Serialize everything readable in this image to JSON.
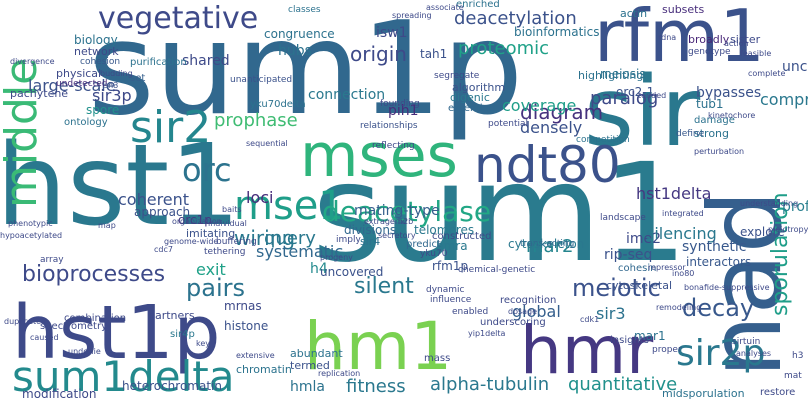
{
  "words": [
    {
      "text": "sum1p",
      "color": "#31688e"
    },
    {
      "text": "sum1",
      "color": "#2a7b8e"
    },
    {
      "text": "hst1",
      "color": "#2a788e"
    },
    {
      "text": "sir",
      "color": "#2a788e"
    },
    {
      "text": "nad",
      "color": "#355f8d"
    },
    {
      "text": "rfm1",
      "color": "#3b528b"
    },
    {
      "text": "hst1p",
      "color": "#3e4a89"
    },
    {
      "text": "hmr",
      "color": "#453882"
    },
    {
      "text": "hm1",
      "color": "#7ad151"
    },
    {
      "text": "mses",
      "color": "#2fb47c"
    },
    {
      "text": "sum1delta",
      "color": "#238a8d"
    },
    {
      "text": "ndt80",
      "color": "#3b528b"
    },
    {
      "text": "mse1",
      "color": "#1f9e89"
    },
    {
      "text": "middle",
      "color": "#3aba76"
    },
    {
      "text": "sir2",
      "color": "#24868e"
    },
    {
      "text": "vegetative",
      "color": "#3e4a89"
    },
    {
      "text": "deacetylase",
      "color": "#22a785"
    },
    {
      "text": "sir2p",
      "color": "#2a788e"
    },
    {
      "text": "orc",
      "color": "#2c738e"
    },
    {
      "text": "sporulation",
      "color": "#1f9e89"
    },
    {
      "text": "bioprocesses",
      "color": "#3e4a89"
    },
    {
      "text": "deacetylation",
      "color": "#3b528b"
    },
    {
      "text": "diagram",
      "color": "#46327e"
    },
    {
      "text": "paralog",
      "color": "#3e4a89"
    },
    {
      "text": "meiotic",
      "color": "#3b528b"
    },
    {
      "text": "silent",
      "color": "#2a788e"
    },
    {
      "text": "loci",
      "color": "#472d7b"
    },
    {
      "text": "hst1delta",
      "color": "#453882"
    },
    {
      "text": "pairs",
      "color": "#2c738e"
    },
    {
      "text": "decay",
      "color": "#38588c"
    },
    {
      "text": "quantitative",
      "color": "#21918c"
    },
    {
      "text": "fitness",
      "color": "#2a788e"
    },
    {
      "text": "alpha-tubulin",
      "color": "#2a788e"
    },
    {
      "text": "origin",
      "color": "#3e4a89"
    },
    {
      "text": "sir3",
      "color": "#2c728e"
    },
    {
      "text": "ime2",
      "color": "#3e4a89"
    },
    {
      "text": "query",
      "color": "#2a788e"
    },
    {
      "text": "wiring",
      "color": "#2a788e"
    },
    {
      "text": "coverage",
      "color": "#1f9e89"
    },
    {
      "text": "proteomic",
      "color": "#1fa188"
    },
    {
      "text": "comprehensive",
      "color": "#2a788e"
    },
    {
      "text": "silencing",
      "color": "#2a788e"
    },
    {
      "text": "mar2",
      "color": "#25858e"
    },
    {
      "text": "global",
      "color": "#355f8d"
    },
    {
      "text": "prophase",
      "color": "#3fbc73"
    },
    {
      "text": "large-scale",
      "color": "#3b528b"
    },
    {
      "text": "sir3p",
      "color": "#3e4a89"
    },
    {
      "text": "profiles",
      "color": "#277f8e"
    },
    {
      "text": "coherent",
      "color": "#3b528b"
    },
    {
      "text": "systematic",
      "color": "#31688e"
    },
    {
      "text": "mating-type",
      "color": "#355f8d"
    },
    {
      "text": "densely",
      "color": "#3b528b"
    },
    {
      "text": "hubs",
      "color": "#2c728e"
    },
    {
      "text": "isw1",
      "color": "#3e4a89"
    },
    {
      "text": "pih1",
      "color": "#472d7b"
    },
    {
      "text": "h4",
      "color": "#238a8d"
    },
    {
      "text": "exit",
      "color": "#1fa188"
    },
    {
      "text": "connection",
      "color": "#2a788e"
    },
    {
      "text": "uncharacterized",
      "color": "#3b528b"
    },
    {
      "text": "rip-seq",
      "color": "#3b528b"
    },
    {
      "text": "cytoskeleton",
      "color": "#2a788e"
    },
    {
      "text": "heterochromatin",
      "color": "#3b528b"
    },
    {
      "text": "hmla",
      "color": "#2c738e"
    },
    {
      "text": "shared",
      "color": "#3e4a89"
    },
    {
      "text": "congruence",
      "color": "#2c728e"
    },
    {
      "text": "bioinformatics",
      "color": "#2c728e"
    },
    {
      "text": "tah1",
      "color": "#3b528b"
    },
    {
      "text": "orc2-1",
      "color": "#3b528b"
    },
    {
      "text": "meiosis",
      "color": "#2c738e"
    },
    {
      "text": "bypasses",
      "color": "#3b528b"
    },
    {
      "text": "biology",
      "color": "#2c728e"
    },
    {
      "text": "network",
      "color": "#3e4a89"
    },
    {
      "text": "cohesion",
      "color": "#38588c"
    },
    {
      "text": "physical",
      "color": "#3e4a89"
    },
    {
      "text": "undetected",
      "color": "#472d7b"
    },
    {
      "text": "pachytene",
      "color": "#3e4a89"
    },
    {
      "text": "spore",
      "color": "#21918c"
    },
    {
      "text": "ontology",
      "color": "#2c728e"
    },
    {
      "text": "approach",
      "color": "#3b528b"
    },
    {
      "text": "orc1p",
      "color": "#453882"
    },
    {
      "text": "imitating",
      "color": "#3b528b"
    },
    {
      "text": "telomeres",
      "color": "#2a788e"
    },
    {
      "text": "divisions",
      "color": "#31688e"
    },
    {
      "text": "synthetic",
      "color": "#38588c"
    },
    {
      "text": "explore",
      "color": "#3b528b"
    },
    {
      "text": "interactors",
      "color": "#38588c"
    },
    {
      "text": "cytoskeletal",
      "color": "#3b528b"
    },
    {
      "text": "uncovered",
      "color": "#3b528b"
    },
    {
      "text": "rfm1p",
      "color": "#3b528b"
    },
    {
      "text": "hmra",
      "color": "#2a788e"
    },
    {
      "text": "sir4",
      "color": "#2c728e"
    },
    {
      "text": "histone",
      "color": "#3b528b"
    },
    {
      "text": "partners",
      "color": "#3e4a89"
    },
    {
      "text": "sir4p",
      "color": "#2a788e"
    },
    {
      "text": "mrnas",
      "color": "#3e4a89"
    },
    {
      "text": "combination",
      "color": "#3e4a89"
    },
    {
      "text": "chromatin",
      "color": "#2c738e"
    },
    {
      "text": "termed",
      "color": "#3b528b"
    },
    {
      "text": "abundant",
      "color": "#2c728e"
    },
    {
      "text": "enriched",
      "color": "#2c728e"
    },
    {
      "text": "subsets",
      "color": "#472d7b"
    },
    {
      "text": "actin",
      "color": "#2c728e"
    },
    {
      "text": "genotype",
      "color": "#3e4a89"
    },
    {
      "text": "broadly",
      "color": "#482677"
    },
    {
      "text": "sister",
      "color": "#3e4a89"
    },
    {
      "text": "tub1",
      "color": "#2c728e"
    },
    {
      "text": "strong",
      "color": "#2c728e"
    },
    {
      "text": "define",
      "color": "#38588c"
    },
    {
      "text": "damage",
      "color": "#2c728e"
    },
    {
      "text": "highlighting",
      "color": "#2c728e"
    },
    {
      "text": "algorithm",
      "color": "#3b528b"
    },
    {
      "text": "digenic",
      "color": "#2a788e"
    },
    {
      "text": "extended",
      "color": "#31688e"
    },
    {
      "text": "purification",
      "color": "#2c728e"
    },
    {
      "text": "set",
      "color": "#355f8d"
    },
    {
      "text": "unanticipated",
      "color": "#3b528b"
    },
    {
      "text": "yku70delta",
      "color": "#2c728e"
    },
    {
      "text": "relationships",
      "color": "#3b528b"
    },
    {
      "text": "segregate",
      "color": "#3e4a89"
    },
    {
      "text": "founding",
      "color": "#3e4a89"
    },
    {
      "text": "classes",
      "color": "#2c728e"
    },
    {
      "text": "spreading",
      "color": "#3e4a89"
    },
    {
      "text": "associate",
      "color": "#3e4a89"
    },
    {
      "text": "divergence",
      "color": "#3e4a89"
    },
    {
      "text": "budding",
      "color": "#3e4a89"
    },
    {
      "text": "sh3",
      "color": "#3b528b"
    },
    {
      "text": "sequential",
      "color": "#3e4a89"
    },
    {
      "text": "reflecting",
      "color": "#3e4a89"
    },
    {
      "text": "potential",
      "color": "#3e4a89"
    },
    {
      "text": "competition",
      "color": "#2c728e"
    },
    {
      "text": "perturbation",
      "color": "#3e4a89"
    },
    {
      "text": "kinetochore",
      "color": "#3e4a89"
    },
    {
      "text": "feasible",
      "color": "#3e4a89"
    },
    {
      "text": "complete",
      "color": "#3e4a89"
    },
    {
      "text": "action",
      "color": "#3e4a89"
    },
    {
      "text": "rdna",
      "color": "#3e4a89"
    },
    {
      "text": "tended",
      "color": "#3e4a89"
    },
    {
      "text": "predict",
      "color": "#31688e"
    },
    {
      "text": "yku70",
      "color": "#3e4a89"
    },
    {
      "text": "constructed",
      "color": "#3e4a89"
    },
    {
      "text": "trans-acting",
      "color": "#31688e"
    },
    {
      "text": "cohesin",
      "color": "#31688e"
    },
    {
      "text": "landscape",
      "color": "#3e4a89"
    },
    {
      "text": "integrated",
      "color": "#3e4a89"
    },
    {
      "text": "understanding",
      "color": "#3e4a89"
    },
    {
      "text": "pleiotropy",
      "color": "#3e4a89"
    },
    {
      "text": "genome-wide",
      "color": "#3e4a89"
    },
    {
      "text": "buffering",
      "color": "#3e4a89"
    },
    {
      "text": "tethering",
      "color": "#3e4a89"
    },
    {
      "text": "baits",
      "color": "#3e4a89"
    },
    {
      "text": "progeny",
      "color": "#3e4a89"
    },
    {
      "text": "imply",
      "color": "#3e4a89"
    },
    {
      "text": "array",
      "color": "#3e4a89"
    },
    {
      "text": "map",
      "color": "#3e4a89"
    },
    {
      "text": "cdc7",
      "color": "#3e4a89"
    },
    {
      "text": "organization",
      "color": "#3e4a89"
    },
    {
      "text": "individual",
      "color": "#3e4a89"
    },
    {
      "text": "extragenic",
      "color": "#3e4a89"
    },
    {
      "text": "secretory",
      "color": "#3e4a89"
    },
    {
      "text": "h2b",
      "color": "#3e4a89"
    },
    {
      "text": "repressor",
      "color": "#3e4a89"
    },
    {
      "text": "ino80",
      "color": "#3e4a89"
    },
    {
      "text": "bonafide-suppressive",
      "color": "#3e4a89"
    },
    {
      "text": "chemical-genetic",
      "color": "#3e4a89"
    },
    {
      "text": "remodeling",
      "color": "#3e4a89"
    },
    {
      "text": "dynamic",
      "color": "#3e4a89"
    },
    {
      "text": "influence",
      "color": "#3e4a89"
    },
    {
      "text": "enabled",
      "color": "#3e4a89"
    },
    {
      "text": "underscoring",
      "color": "#3e4a89"
    },
    {
      "text": "recognition",
      "color": "#3e4a89"
    },
    {
      "text": "dosage",
      "color": "#3e4a89"
    },
    {
      "text": "cdk1",
      "color": "#3e4a89"
    },
    {
      "text": "mar1",
      "color": "#2c728e"
    },
    {
      "text": "insights",
      "color": "#3e4a89"
    },
    {
      "text": "proper",
      "color": "#3e4a89"
    },
    {
      "text": "sirtuin",
      "color": "#3e4a89"
    },
    {
      "text": "analyses",
      "color": "#3e4a89"
    },
    {
      "text": "h3",
      "color": "#3e4a89"
    },
    {
      "text": "mat",
      "color": "#3e4a89"
    },
    {
      "text": "restore",
      "color": "#3e4a89"
    },
    {
      "text": "midsporulation",
      "color": "#2c728e"
    },
    {
      "text": "mass",
      "color": "#3e4a89"
    },
    {
      "text": "replication",
      "color": "#3e4a89"
    },
    {
      "text": "extensive",
      "color": "#3e4a89"
    },
    {
      "text": "key",
      "color": "#3e4a89"
    },
    {
      "text": "spectrometry",
      "color": "#3e4a89"
    },
    {
      "text": "duplicate",
      "color": "#3e4a89"
    },
    {
      "text": "caused",
      "color": "#3e4a89"
    },
    {
      "text": "underlie",
      "color": "#3e4a89"
    },
    {
      "text": "modification",
      "color": "#3e4a89"
    },
    {
      "text": "hypoacetylated",
      "color": "#3e4a89"
    },
    {
      "text": "phenotypic",
      "color": "#3e4a89"
    },
    {
      "text": "yip1delta",
      "color": "#3e4a89"
    }
  ]
}
